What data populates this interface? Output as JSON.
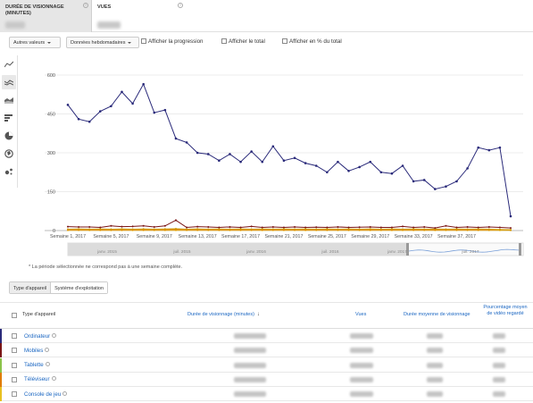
{
  "metric_cards": [
    {
      "title": "DURÉE DE VISIONNAGE (MINUTES)",
      "help_icon": "help-icon",
      "value": ""
    },
    {
      "title": "VUES",
      "help_icon": "help-icon",
      "value": ""
    }
  ],
  "toolbar": {
    "other_values": "Autres valeurs",
    "weekly_data": "Données hebdomadaires",
    "show_progress": "Afficher la progression",
    "show_total": "Afficher le total",
    "show_percent": "Afficher en % du total"
  },
  "chart_types": [
    "line-chart-icon",
    "multi-line-chart-icon",
    "stacked-area-icon",
    "bar-chart-icon",
    "pie-chart-icon",
    "map-icon",
    "bubble-chart-icon"
  ],
  "chart_data": {
    "type": "line",
    "title": "",
    "xlabel": "",
    "ylabel": "",
    "ylim": [
      0,
      600
    ],
    "yticks": [
      "0",
      "150",
      "300",
      "450",
      "600"
    ],
    "xticks": [
      {
        "i": 0,
        "label": "Semaine 1, 2017"
      },
      {
        "i": 4,
        "label": "Semaine 5, 2017"
      },
      {
        "i": 8,
        "label": "Semaine 9, 2017"
      },
      {
        "i": 12,
        "label": "Semaine 13, 2017"
      },
      {
        "i": 16,
        "label": "Semaine 17, 2017"
      },
      {
        "i": 20,
        "label": "Semaine 21, 2017"
      },
      {
        "i": 24,
        "label": "Semaine 25, 2017"
      },
      {
        "i": 28,
        "label": "Semaine 29, 2017"
      },
      {
        "i": 32,
        "label": "Semaine 33, 2017"
      },
      {
        "i": 36,
        "label": "Semaine 37, 2017"
      }
    ],
    "grid": true,
    "series": [
      {
        "key": "ordinateur",
        "color": "#2a2a7a",
        "values": [
          485,
          430,
          420,
          460,
          480,
          535,
          490,
          565,
          455,
          465,
          355,
          340,
          300,
          295,
          270,
          295,
          265,
          305,
          265,
          325,
          270,
          280,
          260,
          250,
          225,
          265,
          230,
          245,
          265,
          225,
          220,
          250,
          190,
          195,
          160,
          170,
          190,
          240,
          320,
          310,
          320,
          55
        ]
      },
      {
        "key": "mobiles",
        "color": "#7a1515",
        "values": [
          15,
          14,
          14,
          12,
          18,
          15,
          16,
          18,
          14,
          18,
          40,
          12,
          15,
          14,
          12,
          14,
          12,
          16,
          12,
          14,
          12,
          14,
          12,
          13,
          12,
          14,
          12,
          13,
          14,
          12,
          12,
          16,
          12,
          14,
          10,
          18,
          12,
          14,
          12,
          14,
          12,
          10
        ]
      },
      {
        "key": "tablette",
        "color": "#cc9a00",
        "values": [
          5,
          6,
          5,
          6,
          5,
          6,
          5,
          6,
          5,
          6,
          7,
          5,
          6,
          5,
          6,
          5,
          6,
          5,
          6,
          5,
          6,
          5,
          6,
          5,
          6,
          5,
          6,
          5,
          6,
          5,
          6,
          5,
          6,
          5,
          6,
          5,
          6,
          5,
          6,
          5,
          4,
          3
        ]
      },
      {
        "key": "televiseur",
        "color": "#e07b00",
        "values": [
          3,
          3,
          3,
          3,
          3,
          3,
          3,
          3,
          3,
          3,
          4,
          3,
          3,
          3,
          3,
          3,
          3,
          3,
          3,
          3,
          3,
          3,
          3,
          3,
          3,
          3,
          3,
          3,
          3,
          3,
          3,
          3,
          3,
          3,
          3,
          3,
          3,
          3,
          3,
          3,
          3,
          2
        ]
      },
      {
        "key": "console",
        "color": "#e8c020",
        "values": [
          1,
          1,
          1,
          1,
          1,
          1,
          1,
          1,
          1,
          1,
          1,
          1,
          1,
          1,
          1,
          1,
          1,
          1,
          1,
          1,
          1,
          1,
          1,
          1,
          1,
          1,
          1,
          1,
          1,
          1,
          1,
          1,
          1,
          1,
          1,
          1,
          1,
          1,
          1,
          1,
          1,
          1
        ]
      }
    ],
    "navigator_labels": [
      "janv. 2015",
      "juil. 2015",
      "janv. 2016",
      "juil. 2016",
      "janv. 2017",
      "juil. 2017"
    ]
  },
  "note": "* La période sélectionnée ne correspond pas à une semaine complète.",
  "tabs": [
    "Type d'appareil",
    "Système d'exploitation"
  ],
  "table": {
    "headers": {
      "type": "Type d'appareil",
      "watch_time": "Durée de visionnage (minutes)",
      "views": "Vues",
      "avg_duration": "Durée moyenne de visionnage",
      "avg_percent": "Pourcentage moyen de vidéo regardé"
    },
    "rows": [
      {
        "label": "Ordinateur",
        "color": "#2a2a7a"
      },
      {
        "label": "Mobiles",
        "color": "#7a1515"
      },
      {
        "label": "Tablette",
        "color": "#8bc34a"
      },
      {
        "label": "Téléviseur",
        "color": "#e07b00"
      },
      {
        "label": "Console de jeu",
        "color": "#e8c020"
      }
    ]
  }
}
